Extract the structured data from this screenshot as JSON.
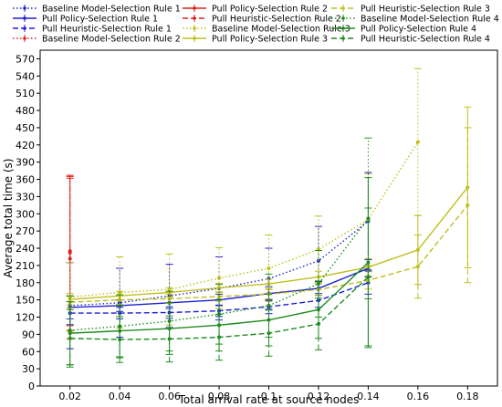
{
  "chart_data": {
    "type": "line",
    "xlabel": "Total arrival rate at source nodes",
    "ylabel": "Average total time (s)",
    "x_ticks": [
      "0.02",
      "0.04",
      "0.06",
      "0.08",
      "0.1",
      "0.12",
      "0.14",
      "0.16",
      "0.18"
    ],
    "y_ticks": [
      0,
      30,
      60,
      90,
      120,
      150,
      180,
      210,
      240,
      270,
      300,
      330,
      360,
      390,
      420,
      450,
      480,
      510,
      540,
      570
    ],
    "xlim": [
      0.008,
      0.192
    ],
    "ylim": [
      0,
      585
    ],
    "grid": false,
    "legend_position": "top",
    "series": [
      {
        "name": "Baseline Model-Selection Rule 1",
        "color": "#1f1fd8",
        "dash": "dot",
        "x": [
          0.02,
          0.04,
          0.06,
          0.08,
          0.1,
          0.12,
          0.14
        ],
        "y": [
          140,
          145,
          157,
          170,
          187,
          218,
          287
        ],
        "err": [
          75,
          60,
          55,
          55,
          53,
          60,
          85
        ]
      },
      {
        "name": "Pull Policy-Selection Rule 1",
        "color": "#1f1fd8",
        "dash": "solid",
        "x": [
          0.02,
          0.04,
          0.06,
          0.08,
          0.1,
          0.12,
          0.14
        ],
        "y": [
          137,
          140,
          145,
          150,
          161,
          170,
          205
        ],
        "err": [
          20,
          10,
          10,
          10,
          12,
          12,
          15
        ]
      },
      {
        "name": "Pull Heuristic-Selection Rule 1",
        "color": "#1f1fd8",
        "dash": "dash",
        "x": [
          0.02,
          0.04,
          0.06,
          0.08,
          0.1,
          0.12,
          0.14
        ],
        "y": [
          127,
          127,
          128,
          131,
          138,
          149,
          180
        ],
        "err": [
          20,
          10,
          10,
          10,
          12,
          12,
          20
        ]
      },
      {
        "name": "Baseline Model-Selection Rule 2",
        "color": "#e0201b",
        "dash": "dot",
        "x": [
          0.02
        ],
        "y": [
          232
        ],
        "err": [
          135
        ]
      },
      {
        "name": "Pull Policy-Selection Rule 2",
        "color": "#e0201b",
        "dash": "solid",
        "x": [
          0.02
        ],
        "y": [
          235
        ],
        "err": [
          130
        ]
      },
      {
        "name": "Pull Heuristic-Selection Rule 2",
        "color": "#e0201b",
        "dash": "dash",
        "x": [
          0.02
        ],
        "y": [
          222
        ],
        "err": [
          140
        ]
      },
      {
        "name": "Baseline Model-Selection Rule 3",
        "color": "#bfbf1d",
        "dash": "dot",
        "x": [
          0.02,
          0.04,
          0.06,
          0.08,
          0.1,
          0.12,
          0.14,
          0.16
        ],
        "y": [
          155,
          163,
          168,
          188,
          205,
          238,
          290,
          425
        ],
        "err": [
          60,
          62,
          62,
          53,
          58,
          58,
          80,
          128
        ]
      },
      {
        "name": "Pull Policy-Selection Rule 3",
        "color": "#bfbf1d",
        "dash": "solid",
        "x": [
          0.02,
          0.04,
          0.06,
          0.08,
          0.1,
          0.12,
          0.14,
          0.16,
          0.18
        ],
        "y": [
          151,
          157,
          163,
          171,
          178,
          190,
          207,
          237,
          346
        ],
        "err": [
          10,
          8,
          8,
          8,
          8,
          10,
          15,
          60,
          140
        ]
      },
      {
        "name": "Pull Heuristic-Selection Rule 3",
        "color": "#bfbf1d",
        "dash": "dash",
        "x": [
          0.02,
          0.04,
          0.06,
          0.08,
          0.1,
          0.12,
          0.14,
          0.16,
          0.18
        ],
        "y": [
          146,
          150,
          152,
          156,
          160,
          168,
          184,
          208,
          315
        ],
        "err": [
          10,
          8,
          8,
          8,
          8,
          10,
          15,
          55,
          135
        ]
      },
      {
        "name": "Baseline Model-Selection Rule 4",
        "color": "#1f8c1f",
        "dash": "dot",
        "x": [
          0.02,
          0.04,
          0.06,
          0.08,
          0.1,
          0.12,
          0.14
        ],
        "y": [
          97,
          104,
          113,
          125,
          140,
          178,
          292
        ],
        "err": [
          60,
          55,
          52,
          52,
          55,
          58,
          140
        ]
      },
      {
        "name": "Pull Policy-Selection Rule 4",
        "color": "#1f8c1f",
        "dash": "solid",
        "x": [
          0.02,
          0.04,
          0.06,
          0.08,
          0.1,
          0.12,
          0.14
        ],
        "y": [
          92,
          96,
          100,
          106,
          115,
          133,
          215
        ],
        "err": [
          55,
          45,
          45,
          45,
          45,
          50,
          148
        ]
      },
      {
        "name": "Pull Heuristic-Selection Rule 4",
        "color": "#1f8c1f",
        "dash": "dash",
        "x": [
          0.02,
          0.04,
          0.06,
          0.08,
          0.1,
          0.12,
          0.14
        ],
        "y": [
          83,
          81,
          82,
          85,
          92,
          108,
          190
        ],
        "err": [
          50,
          40,
          40,
          40,
          40,
          45,
          120
        ]
      }
    ]
  }
}
